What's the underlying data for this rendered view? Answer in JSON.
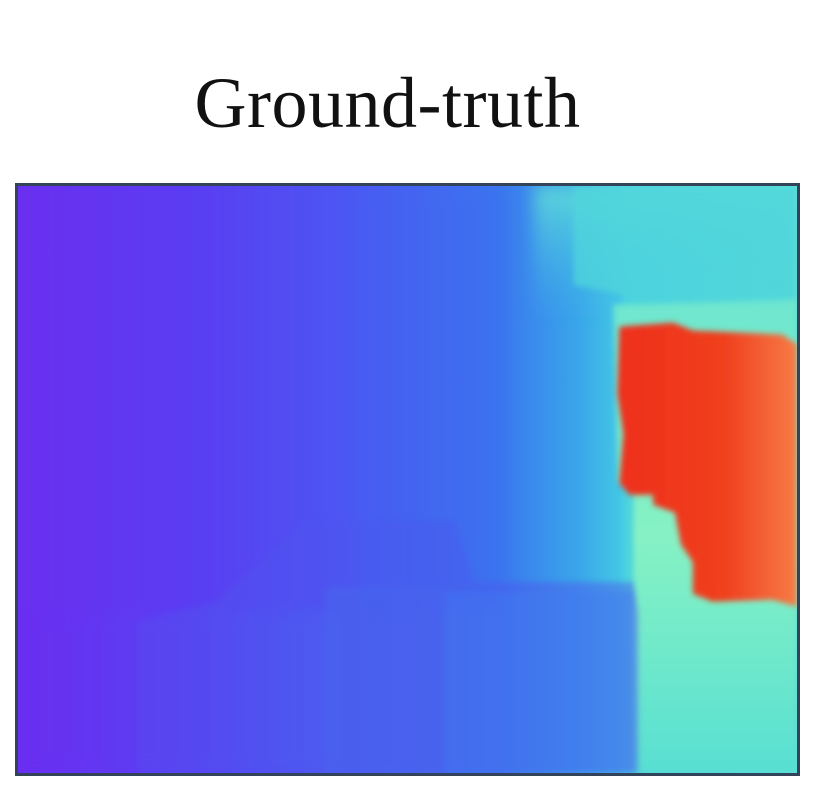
{
  "figure": {
    "title": "Ground-truth"
  },
  "colors": {
    "far_left": "#6a2ff0",
    "mid": "#3d6cf0",
    "cyan": "#3fc8e8",
    "mint": "#7ff0c8",
    "red": "#f0341c",
    "orange": "#f36a3a",
    "frame": "#33445a"
  }
}
